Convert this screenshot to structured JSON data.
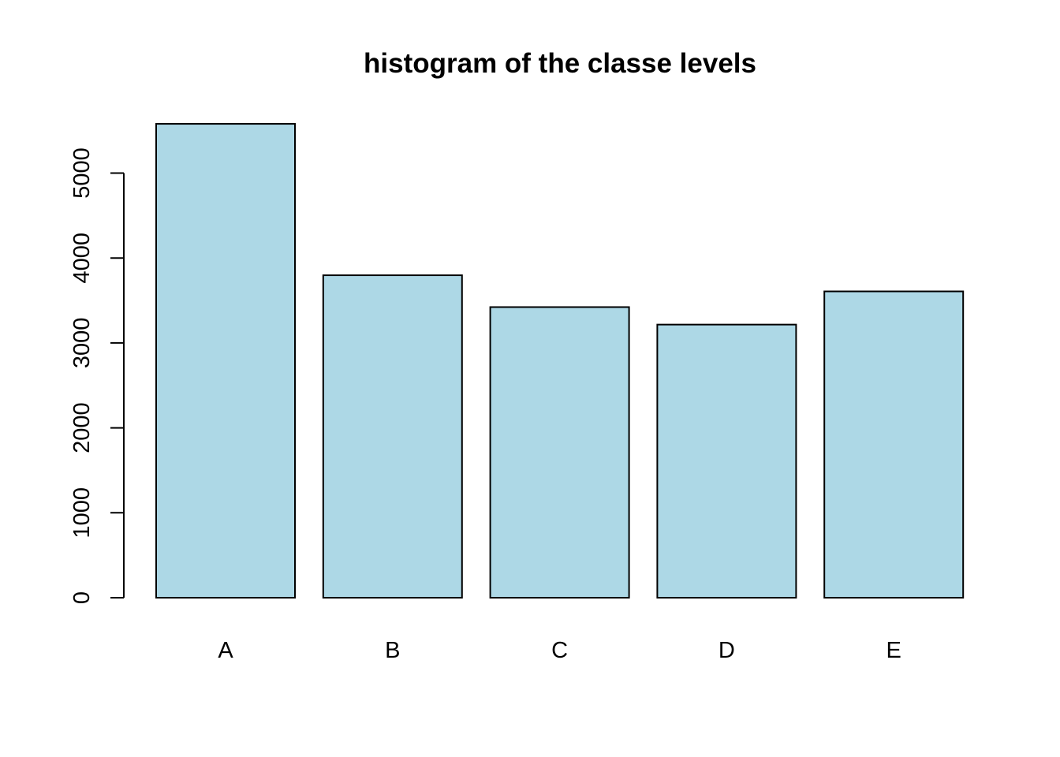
{
  "chart_data": {
    "type": "bar",
    "title": "histogram of the classe levels",
    "xlabel": "",
    "ylabel": "",
    "categories": [
      "A",
      "B",
      "C",
      "D",
      "E"
    ],
    "values": [
      5580,
      3797,
      3422,
      3216,
      3607
    ],
    "ylim": [
      0,
      5580
    ],
    "yticks": [
      {
        "value": 0,
        "label": "0"
      },
      {
        "value": 1000,
        "label": "1000"
      },
      {
        "value": 2000,
        "label": "2000"
      },
      {
        "value": 3000,
        "label": "3000"
      },
      {
        "value": 4000,
        "label": "4000"
      },
      {
        "value": 5000,
        "label": "5000"
      }
    ],
    "bar_color": "#add8e6",
    "border_color": "#000000",
    "grid": false,
    "legend": "none"
  }
}
